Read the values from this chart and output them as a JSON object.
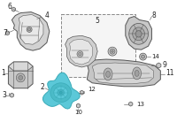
{
  "bg_color": "#ffffff",
  "line_color": "#555555",
  "highlight_color": "#5bc8d8",
  "part_gray": "#c8c8c8",
  "part_dark": "#aaaaaa",
  "label_fontsize": 5.5,
  "fig_width": 2.0,
  "fig_height": 1.47,
  "dpi": 100
}
